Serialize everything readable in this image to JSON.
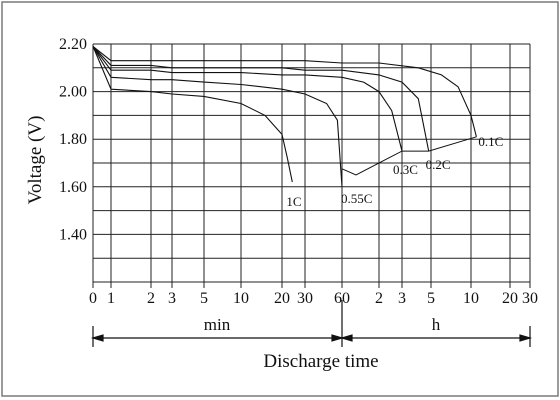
{
  "chart_data": {
    "type": "line",
    "title": "",
    "ylabel": "Voltage (V)",
    "xlabel": "Discharge time",
    "ylim": [
      1.2,
      2.2
    ],
    "y_ticks": [
      "2.20",
      "2.00",
      "1.80",
      "1.60",
      "1.40"
    ],
    "x_ticks": [
      "0",
      "1",
      "2",
      "3",
      "5",
      "10",
      "20",
      "30",
      "60",
      "2",
      "3",
      "5",
      "10",
      "20",
      "30"
    ],
    "x_units": {
      "left": "min",
      "right": "h"
    },
    "grid": true,
    "series": [
      {
        "name": "1C",
        "x_min": [
          0,
          1,
          2,
          3,
          5,
          10,
          15,
          20,
          22,
          24
        ],
        "y": [
          2.19,
          2.01,
          2.0,
          1.99,
          1.98,
          1.95,
          1.9,
          1.82,
          1.72,
          1.62
        ]
      },
      {
        "name": "0.55C",
        "x_min": [
          0,
          1,
          2,
          3,
          5,
          10,
          20,
          30,
          45,
          55,
          60
        ],
        "y": [
          2.19,
          2.06,
          2.05,
          2.05,
          2.04,
          2.03,
          2.01,
          1.99,
          1.95,
          1.88,
          1.6
        ]
      },
      {
        "name": "0.3C",
        "x_min": [
          0,
          1,
          2,
          3,
          5,
          10,
          20,
          30,
          60,
          90,
          120,
          150,
          180
        ],
        "y": [
          2.19,
          2.09,
          2.09,
          2.08,
          2.08,
          2.08,
          2.07,
          2.07,
          2.06,
          2.04,
          2.0,
          1.92,
          1.75
        ]
      },
      {
        "name": "0.2C",
        "x_min": [
          0,
          1,
          2,
          3,
          5,
          10,
          20,
          30,
          60,
          120,
          180,
          240,
          288
        ],
        "y": [
          2.19,
          2.11,
          2.11,
          2.1,
          2.1,
          2.1,
          2.1,
          2.09,
          2.09,
          2.07,
          2.04,
          1.97,
          1.75
        ]
      },
      {
        "name": "0.1C",
        "x_min": [
          0,
          1,
          2,
          3,
          5,
          10,
          20,
          30,
          60,
          120,
          240,
          360,
          480,
          600,
          660
        ],
        "y": [
          2.19,
          2.13,
          2.13,
          2.13,
          2.13,
          2.13,
          2.13,
          2.13,
          2.12,
          2.12,
          2.1,
          2.07,
          2.02,
          1.9,
          1.81
        ]
      }
    ]
  }
}
